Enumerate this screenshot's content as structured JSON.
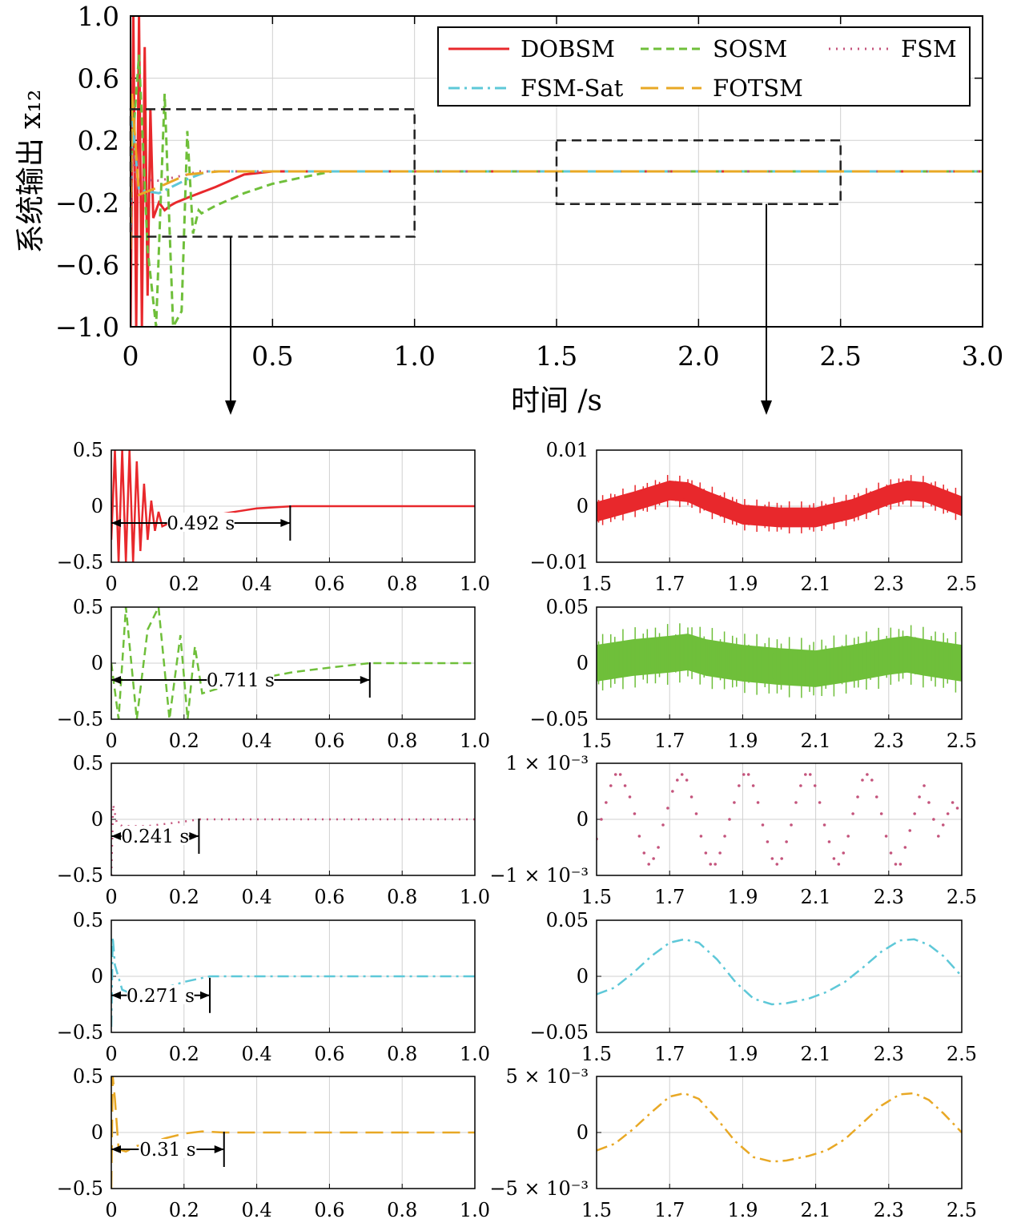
{
  "chart_data": [
    {
      "id": "main",
      "type": "line",
      "ylabel": "系统输出 x₁₂",
      "xlabel": "时间 /s",
      "xlim": [
        0,
        3
      ],
      "ylim": [
        -1,
        1
      ],
      "xticks": [
        0,
        0.5,
        1,
        1.5,
        2,
        2.5,
        3
      ],
      "xtick_labels": [
        "0",
        "0.5",
        "1.0",
        "1.5",
        "2.0",
        "2.5",
        "3.0"
      ],
      "yticks": [
        1,
        0.6,
        0.2,
        -0.2,
        -0.6,
        -1
      ],
      "ytick_labels": [
        "1.0",
        "0.6",
        "0.2",
        "−0.2",
        "−0.6",
        "−1.0"
      ],
      "grid": true,
      "legend_position": "top-right",
      "zoom_boxes": [
        {
          "x": [
            0,
            1
          ],
          "y": [
            -0.42,
            0.4
          ]
        },
        {
          "x": [
            1.5,
            2.5
          ],
          "y": [
            -0.21,
            0.2
          ]
        }
      ],
      "series": [
        {
          "name": "DOBSM",
          "color": "#e8282c",
          "dash": "solid",
          "x": [
            0,
            0.01,
            0.02,
            0.03,
            0.04,
            0.05,
            0.06,
            0.07,
            0.08,
            0.1,
            0.12,
            0.14,
            0.16,
            0.2,
            0.3,
            0.4,
            0.5,
            0.6,
            1,
            3
          ],
          "y": [
            -1,
            1,
            -1,
            1,
            -1,
            0.8,
            -0.8,
            0.4,
            -0.3,
            -0.2,
            -0.25,
            -0.22,
            -0.2,
            -0.17,
            -0.1,
            -0.02,
            0,
            0,
            0,
            0
          ]
        },
        {
          "name": "SOSM",
          "color": "#6fbf3a",
          "dash": "dash",
          "x": [
            0,
            0.03,
            0.06,
            0.09,
            0.12,
            0.15,
            0.18,
            0.2,
            0.22,
            0.24,
            0.25,
            0.3,
            0.4,
            0.5,
            0.6,
            0.71,
            1,
            3
          ],
          "y": [
            0,
            0.75,
            -0.5,
            -1,
            0.5,
            -1,
            -0.9,
            0.26,
            -0.4,
            -0.25,
            -0.27,
            -0.22,
            -0.14,
            -0.08,
            -0.04,
            0,
            0,
            0
          ]
        },
        {
          "name": "FSM",
          "color": "#c4547c",
          "dash": "dot",
          "x": [
            0,
            0.005,
            0.02,
            0.1,
            0.2,
            0.241,
            1,
            3
          ],
          "y": [
            -0.5,
            0.12,
            -0.05,
            -0.06,
            -0.02,
            0,
            0,
            0
          ]
        },
        {
          "name": "FSM-Sat",
          "color": "#5ec8d8",
          "dash": "dashdot",
          "x": [
            0,
            0.005,
            0.03,
            0.1,
            0.2,
            0.271,
            1,
            3
          ],
          "y": [
            -0.45,
            0.35,
            -0.12,
            -0.14,
            -0.05,
            0,
            0,
            0
          ]
        },
        {
          "name": "FOTSM",
          "color": "#e8a825",
          "dash": "longdash",
          "x": [
            0,
            0.005,
            0.03,
            0.1,
            0.2,
            0.31,
            1,
            3
          ],
          "y": [
            -0.5,
            0.5,
            -0.15,
            -0.1,
            -0.02,
            0,
            0,
            0
          ]
        }
      ]
    },
    {
      "id": "zoom-left-DOBSM",
      "type": "line",
      "color": "#e8282c",
      "dash": "solid",
      "xlim": [
        0,
        1
      ],
      "ylim": [
        -0.5,
        0.5
      ],
      "annotation": {
        "x_start": 0,
        "x_end": 0.492,
        "y": -0.15,
        "label": "0.492 s"
      },
      "x": [
        0,
        0.01,
        0.02,
        0.03,
        0.04,
        0.05,
        0.06,
        0.07,
        0.08,
        0.09,
        0.1,
        0.11,
        0.12,
        0.13,
        0.14,
        0.16,
        0.2,
        0.3,
        0.4,
        0.5,
        0.6,
        1
      ],
      "y": [
        -0.3,
        0.5,
        -0.5,
        0.5,
        -0.5,
        0.5,
        -0.5,
        0.4,
        -0.4,
        0.2,
        -0.3,
        0.05,
        -0.22,
        -0.05,
        -0.18,
        -0.15,
        -0.12,
        -0.07,
        -0.02,
        0,
        0,
        0
      ]
    },
    {
      "id": "zoom-left-SOSM",
      "type": "line",
      "color": "#6fbf3a",
      "dash": "dash",
      "xlim": [
        0,
        1
      ],
      "ylim": [
        -0.5,
        0.5
      ],
      "annotation": {
        "x_start": 0,
        "x_end": 0.711,
        "y": -0.15,
        "label": "0.711 s"
      },
      "x": [
        0,
        0.02,
        0.04,
        0.07,
        0.1,
        0.13,
        0.16,
        0.19,
        0.21,
        0.23,
        0.25,
        0.3,
        0.4,
        0.5,
        0.6,
        0.71,
        1
      ],
      "y": [
        0,
        -0.5,
        0.5,
        -0.5,
        0.3,
        0.5,
        -0.5,
        0.25,
        -0.5,
        0.15,
        -0.27,
        -0.22,
        -0.14,
        -0.08,
        -0.04,
        0,
        0
      ]
    },
    {
      "id": "zoom-left-FSM",
      "type": "line",
      "color": "#c4547c",
      "dash": "dot",
      "xlim": [
        0,
        1
      ],
      "ylim": [
        -0.5,
        0.5
      ],
      "annotation": {
        "x_start": 0,
        "x_end": 0.241,
        "y": -0.15,
        "label": "0.241 s"
      },
      "x": [
        0,
        0.005,
        0.015,
        0.03,
        0.1,
        0.2,
        0.241,
        1
      ],
      "y": [
        -0.5,
        0.13,
        -0.03,
        -0.06,
        -0.06,
        -0.02,
        0,
        0
      ]
    },
    {
      "id": "zoom-left-FSM-Sat",
      "type": "line",
      "color": "#5ec8d8",
      "dash": "dashdot",
      "xlim": [
        0,
        1
      ],
      "ylim": [
        -0.5,
        0.5
      ],
      "annotation": {
        "x_start": 0,
        "x_end": 0.271,
        "y": -0.17,
        "label": "0.271 s"
      },
      "x": [
        0,
        0.004,
        0.01,
        0.03,
        0.06,
        0.1,
        0.15,
        0.2,
        0.271,
        1
      ],
      "y": [
        -0.45,
        0.35,
        0.1,
        -0.12,
        -0.16,
        -0.14,
        -0.1,
        -0.05,
        0,
        0
      ]
    },
    {
      "id": "zoom-left-FOTSM",
      "type": "line",
      "color": "#e8a825",
      "dash": "longdash",
      "xlim": [
        0,
        1
      ],
      "ylim": [
        -0.5,
        0.5
      ],
      "annotation": {
        "x_start": 0,
        "x_end": 0.31,
        "y": -0.15,
        "label": "0.31 s"
      },
      "x": [
        0,
        0.004,
        0.01,
        0.02,
        0.04,
        0.07,
        0.1,
        0.15,
        0.2,
        0.25,
        0.31,
        1
      ],
      "y": [
        -0.5,
        0.5,
        0.3,
        -0.15,
        -0.17,
        -0.12,
        -0.1,
        -0.05,
        -0.01,
        0.01,
        0,
        0
      ]
    },
    {
      "id": "zoom-right-DOBSM",
      "type": "line",
      "color": "#e8282c",
      "xlim": [
        1.5,
        2.5
      ],
      "ylim": [
        -0.01,
        0.01
      ],
      "band_halfwidth": 0.0017,
      "x": [
        1.5,
        1.6,
        1.7,
        1.75,
        1.8,
        1.9,
        2.0,
        2.1,
        2.2,
        2.3,
        2.35,
        2.4,
        2.5
      ],
      "y": [
        -0.001,
        0.0008,
        0.0028,
        0.0025,
        0.001,
        -0.0015,
        -0.002,
        -0.002,
        -0.0005,
        0.002,
        0.0028,
        0.0025,
        0
      ]
    },
    {
      "id": "zoom-right-SOSM",
      "type": "line",
      "color": "#6fbf3a",
      "xlim": [
        1.5,
        2.5
      ],
      "ylim": [
        -0.05,
        0.05
      ],
      "band_halfwidth": 0.016,
      "x": [
        1.5,
        1.6,
        1.7,
        1.75,
        1.8,
        1.9,
        2.0,
        2.1,
        2.2,
        2.3,
        2.35,
        2.4,
        2.5
      ],
      "y": [
        0,
        0.005,
        0.008,
        0.01,
        0.005,
        0,
        -0.003,
        -0.005,
        0,
        0.006,
        0.008,
        0.005,
        0
      ]
    },
    {
      "id": "zoom-right-FSM",
      "type": "scatter",
      "color": "#c4547c",
      "xlim": [
        1.5,
        2.5
      ],
      "ylim": [
        -0.001,
        0.001
      ],
      "y_label_top": "1 × 10⁻³",
      "y_label_bottom": "−1 × 10⁻³",
      "x": [
        1.5,
        1.513,
        1.526,
        1.539,
        1.552,
        1.565,
        1.578,
        1.591,
        1.604,
        1.617,
        1.63,
        1.643,
        1.656,
        1.669,
        1.682,
        1.695,
        1.708,
        1.721,
        1.734,
        1.747,
        1.76,
        1.773,
        1.786,
        1.799,
        1.812,
        1.825,
        1.838,
        1.851,
        1.864,
        1.877,
        1.89,
        1.903,
        1.916,
        1.929,
        1.942,
        1.955,
        1.968,
        1.981,
        1.994,
        2.007,
        2.02,
        2.033,
        2.046,
        2.059,
        2.072,
        2.085,
        2.098,
        2.111,
        2.124,
        2.137,
        2.15,
        2.163,
        2.176,
        2.189,
        2.202,
        2.215,
        2.228,
        2.241,
        2.254,
        2.267,
        2.28,
        2.293,
        2.306,
        2.319,
        2.332,
        2.345,
        2.358,
        2.371,
        2.384,
        2.397,
        2.41,
        2.423,
        2.436,
        2.449,
        2.462,
        2.475,
        2.488
      ],
      "y": [
        -0.00035,
        0,
        0.0003,
        0.0006,
        0.0008,
        0.0008,
        0.0006,
        0.0004,
        0.0001,
        -0.0003,
        -0.0006,
        -0.0008,
        -0.0007,
        -0.0005,
        -0.0001,
        0.0002,
        0.0005,
        0.0007,
        0.0008,
        0.0007,
        0.0004,
        0.0001,
        -0.0003,
        -0.0006,
        -0.0008,
        -0.0008,
        -0.0006,
        -0.0003,
        0,
        0.0003,
        0.0006,
        0.0008,
        0.0008,
        0.0006,
        0.0003,
        -0.0001,
        -0.0004,
        -0.0007,
        -0.0008,
        -0.0007,
        -0.0004,
        -0.0001,
        0.0003,
        0.0006,
        0.0008,
        0.0008,
        0.0006,
        0.0003,
        -0.0001,
        -0.0004,
        -0.0007,
        -0.0008,
        -0.0006,
        -0.0003,
        0.0001,
        0.0004,
        0.0007,
        0.0008,
        0.0007,
        0.0004,
        0.0001,
        -0.0003,
        -0.0006,
        -0.0008,
        -0.0008,
        -0.0005,
        -0.0002,
        0.0001,
        0.0004,
        0.0006,
        0.0003,
        0,
        -0.0003,
        -0.0001,
        0.0001,
        0.0003,
        0.0002
      ]
    },
    {
      "id": "zoom-right-FSM-Sat",
      "type": "line",
      "color": "#5ec8d8",
      "dash": "dashdot",
      "xlim": [
        1.5,
        2.5
      ],
      "ylim": [
        -0.05,
        0.05
      ],
      "x": [
        1.5,
        1.55,
        1.6,
        1.65,
        1.7,
        1.74,
        1.78,
        1.83,
        1.88,
        1.93,
        1.98,
        2.02,
        2.08,
        2.13,
        2.18,
        2.23,
        2.28,
        2.33,
        2.37,
        2.41,
        2.45,
        2.5
      ],
      "y": [
        -0.016,
        -0.01,
        0.003,
        0.018,
        0.03,
        0.033,
        0.03,
        0.015,
        -0.005,
        -0.02,
        -0.025,
        -0.024,
        -0.02,
        -0.014,
        -0.005,
        0.008,
        0.022,
        0.032,
        0.033,
        0.028,
        0.018,
        0
      ]
    },
    {
      "id": "zoom-right-FOTSM",
      "type": "line",
      "color": "#e8a825",
      "dash": "dashdot",
      "xlim": [
        1.5,
        2.5
      ],
      "ylim": [
        -0.005,
        0.005
      ],
      "y_label_top": "5 × 10⁻³",
      "y_label_bottom": "−5 × 10⁻³",
      "x": [
        1.5,
        1.55,
        1.6,
        1.65,
        1.7,
        1.74,
        1.78,
        1.83,
        1.88,
        1.93,
        1.98,
        2.02,
        2.08,
        2.13,
        2.18,
        2.23,
        2.28,
        2.33,
        2.37,
        2.41,
        2.45,
        2.5
      ],
      "y": [
        -0.0016,
        -0.001,
        0.0003,
        0.0018,
        0.0032,
        0.0035,
        0.003,
        0.0012,
        -0.0008,
        -0.0022,
        -0.0026,
        -0.0025,
        -0.0021,
        -0.0016,
        -0.0006,
        0.0009,
        0.0024,
        0.0034,
        0.0035,
        0.0029,
        0.0017,
        0
      ]
    }
  ]
}
